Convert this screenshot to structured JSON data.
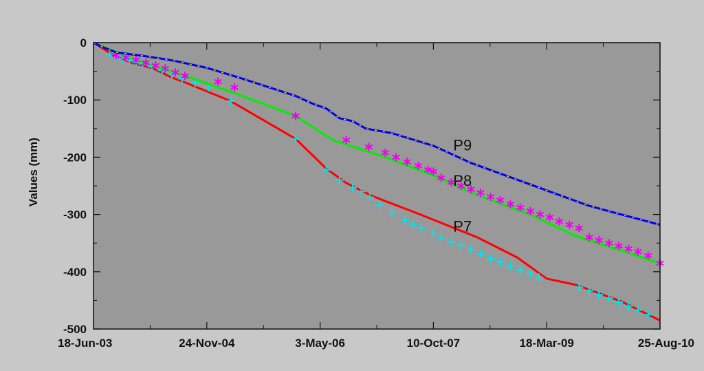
{
  "chart_data": {
    "type": "line",
    "title": "",
    "xlabel": "",
    "ylabel": "Values (mm)",
    "x_type": "date",
    "xlim": [
      "2003-06-18",
      "2010-08-25"
    ],
    "ylim": [
      -500,
      0
    ],
    "x_ticks": [
      {
        "date": "2003-06-18",
        "label": "18-Jun-03"
      },
      {
        "date": "2004-11-24",
        "label": "24-Nov-04"
      },
      {
        "date": "2006-05-03",
        "label": "3-May-06"
      },
      {
        "date": "2007-10-10",
        "label": "10-Oct-07"
      },
      {
        "date": "2009-03-18",
        "label": "18-Mar-09"
      },
      {
        "date": "2010-08-25",
        "label": "25-Aug-10"
      }
    ],
    "y_ticks": [
      0,
      -100,
      -200,
      -300,
      -400,
      -500
    ],
    "grid": false,
    "colors": {
      "plot_background": "#999999",
      "page_background": "#c8c8c8",
      "p7_line": "#ff0000",
      "p7_marker": "#00e5ee",
      "p8_line": "#00ee00",
      "p8_marker": "#ee00ee",
      "p9_line": "#0000ee",
      "p9_marker": "#e8d000"
    },
    "series": [
      {
        "name": "P7",
        "line_color": "#ff0000",
        "marker": "plus",
        "marker_color": "#00e5ee",
        "x": [
          "2003-06-18",
          "2003-09-20",
          "2003-12-10",
          "2004-03-20",
          "2004-06-10",
          "2004-09-01",
          "2005-03-15",
          "2006-01-10",
          "2006-06-01",
          "2006-09-01",
          "2007-01-01",
          "2007-08-10",
          "2008-05-01",
          "2008-11-01",
          "2009-03-18",
          "2009-08-01",
          "2010-03-01",
          "2010-08-25"
        ],
        "y": [
          0,
          -22,
          -35,
          -45,
          -60,
          -72,
          -102,
          -168,
          -220,
          -245,
          -268,
          -300,
          -340,
          -375,
          -412,
          -423,
          -452,
          -485
        ],
        "markers": {
          "x": [
            "2003-09-01",
            "2003-10-01",
            "2003-11-01",
            "2003-12-01",
            "2004-01-01",
            "2004-02-01",
            "2004-03-15",
            "2004-05-01",
            "2004-06-15",
            "2004-08-01",
            "2004-10-01",
            "2004-12-01",
            "2005-03-15",
            "2006-01-10",
            "2006-06-01",
            "2006-08-01",
            "2006-10-01",
            "2006-11-10",
            "2006-12-20",
            "2007-02-01",
            "2007-04-01",
            "2007-06-01",
            "2007-07-10",
            "2007-08-15",
            "2007-10-10",
            "2007-11-15",
            "2008-01-01",
            "2008-02-15",
            "2008-04-01",
            "2008-05-15",
            "2008-07-01",
            "2008-08-15",
            "2008-10-01",
            "2008-11-15",
            "2009-01-01",
            "2009-02-10",
            "2009-08-15",
            "2009-10-01",
            "2009-11-15",
            "2010-01-01",
            "2010-02-15",
            "2010-04-01",
            "2010-05-15",
            "2010-07-01"
          ],
          "y": [
            -20,
            -25,
            -28,
            -31,
            -34,
            -37,
            -42,
            -48,
            -55,
            -63,
            -70,
            -78,
            -102,
            -168,
            -222,
            -240,
            -253,
            -260,
            -270,
            -283,
            -298,
            -310,
            -317,
            -324,
            -333,
            -341,
            -348,
            -354,
            -361,
            -369,
            -377,
            -383,
            -390,
            -397,
            -403,
            -410,
            -427,
            -433,
            -440,
            -446,
            -453,
            -460,
            -467,
            -475
          ]
        }
      },
      {
        "name": "P8",
        "line_color": "#00ee00",
        "marker": "asterisk",
        "marker_color": "#ee00ee",
        "x": [
          "2003-06-18",
          "2004-01-01",
          "2004-09-01",
          "2005-04-01",
          "2006-01-10",
          "2006-07-01",
          "2007-03-01",
          "2007-10-10",
          "2008-05-15",
          "2009-01-01",
          "2009-08-01",
          "2010-08-25"
        ],
        "y": [
          0,
          -30,
          -60,
          -88,
          -128,
          -170,
          -200,
          -232,
          -268,
          -300,
          -338,
          -385
        ],
        "markers": {
          "x": [
            "2003-10-01",
            "2003-11-15",
            "2004-01-01",
            "2004-02-15",
            "2004-04-01",
            "2004-05-15",
            "2004-07-01",
            "2004-08-15",
            "2005-01-15",
            "2005-04-01",
            "2006-01-10",
            "2006-09-01",
            "2006-12-15",
            "2007-03-01",
            "2007-04-20",
            "2007-06-10",
            "2007-08-01",
            "2007-09-15",
            "2007-10-10",
            "2007-11-15",
            "2008-01-01",
            "2008-02-15",
            "2008-04-01",
            "2008-05-15",
            "2008-07-01",
            "2008-08-15",
            "2008-10-01",
            "2008-11-15",
            "2009-01-01",
            "2009-02-15",
            "2009-04-01",
            "2009-05-15",
            "2009-07-01",
            "2009-08-15",
            "2009-10-01",
            "2009-11-15",
            "2010-01-01",
            "2010-02-15",
            "2010-04-01",
            "2010-05-15",
            "2010-07-01",
            "2010-08-25"
          ],
          "y": [
            -22,
            -26,
            -30,
            -35,
            -40,
            -45,
            -52,
            -58,
            -68,
            -78,
            -128,
            -170,
            -182,
            -192,
            -200,
            -208,
            -215,
            -222,
            -225,
            -236,
            -244,
            -250,
            -256,
            -262,
            -269,
            -275,
            -282,
            -288,
            -294,
            -300,
            -305,
            -312,
            -318,
            -324,
            -340,
            -345,
            -350,
            -355,
            -360,
            -365,
            -372,
            -385
          ]
        }
      },
      {
        "name": "P9",
        "line_color": "#0000ee",
        "marker": "dot",
        "marker_color": "#e8d000",
        "x": [
          "2003-06-18",
          "2003-07-20",
          "2003-10-01",
          "2004-02-01",
          "2004-05-01",
          "2004-07-01",
          "2004-11-24",
          "2005-05-01",
          "2006-01-10",
          "2006-04-01",
          "2006-06-01",
          "2006-08-01",
          "2006-10-01",
          "2006-12-01",
          "2007-04-01",
          "2007-10-10",
          "2008-04-01",
          "2009-03-18",
          "2009-10-01",
          "2010-08-25"
        ],
        "y": [
          0,
          -6,
          -17,
          -23,
          -28,
          -32,
          -44,
          -62,
          -93,
          -107,
          -115,
          -132,
          -137,
          -150,
          -158,
          -180,
          -210,
          -258,
          -285,
          -318
        ],
        "markers": {
          "x": [],
          "y": []
        }
      }
    ],
    "annotations": [
      {
        "text": "P9",
        "x": "2008-01-10",
        "y": -188
      },
      {
        "text": "P8",
        "x": "2008-01-10",
        "y": -250
      },
      {
        "text": "P7",
        "x": "2008-01-10",
        "y": -330
      }
    ]
  }
}
